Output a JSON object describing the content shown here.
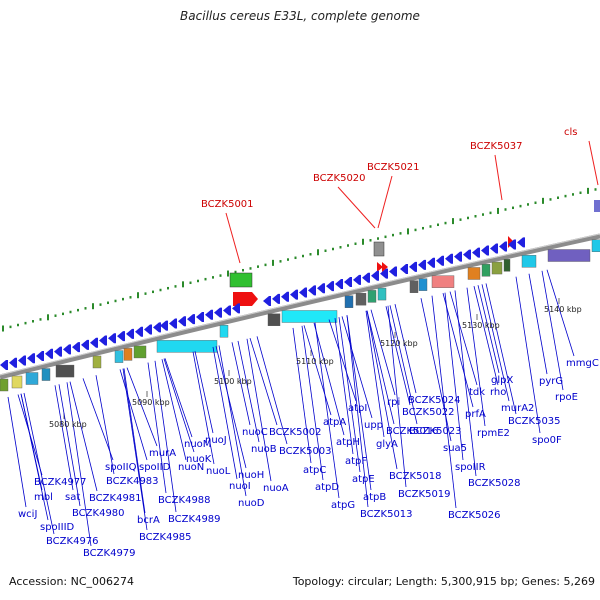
{
  "title": "Bacillus cereus E33L, complete genome",
  "accession": "Accession: NC_006274",
  "topology": "Topology: circular; Length: 5,300,915 bp; Genes: 5,269",
  "colors": {
    "backbone": "#8c8c8c",
    "tick": "#2a8a2a",
    "gene_label": "#0000cc",
    "highlight_label": "#cc0000",
    "gene_arrow": "#2020e0"
  },
  "scale_labels": [
    "5080 kbp",
    "5090 kbp",
    "5100 kbp",
    "5110 kbp",
    "5120 kbp",
    "5130 kbp",
    "5140 kbp"
  ],
  "highlight_labels": [
    "BCZK5001",
    "BCZK5020",
    "BCZK5021",
    "BCZK5037",
    "cls"
  ],
  "gene_labels": [
    "wciJ",
    "mbl",
    "BCZK4977",
    "spoIIID",
    "BCZK4976",
    "sat",
    "BCZK4980",
    "BCZK4979",
    "BCZK4981",
    "spoIIQ",
    "BCZK4983",
    "bcrA",
    "BCZK4985",
    "spoIID",
    "murA",
    "BCZK4988",
    "BCZK4989",
    "nuoN",
    "nuoM",
    "nuoK",
    "nuoJ",
    "nuoL",
    "nuoI",
    "nuoD",
    "nuoH",
    "nuoC",
    "nuoB",
    "nuoA",
    "BCZK5002",
    "BCZK5003",
    "atpC",
    "atpD",
    "atpG",
    "atpA",
    "atpH",
    "atpF",
    "atpE",
    "atpB",
    "atpI",
    "upp",
    "glyA",
    "BCZK5013",
    "rpi",
    "BCZK5016",
    "BCZK5018",
    "BCZK5019",
    "BCZK5024",
    "BCZK5022",
    "BCZK5023",
    "sua5",
    "spoIIR",
    "BCZK5028",
    "BCZK5026",
    "tdk",
    "prfA",
    "rpmE2",
    "glpX",
    "rho",
    "murA2",
    "BCZK5035",
    "pyrG",
    "rpoE",
    "spo0F",
    "mmgC"
  ]
}
